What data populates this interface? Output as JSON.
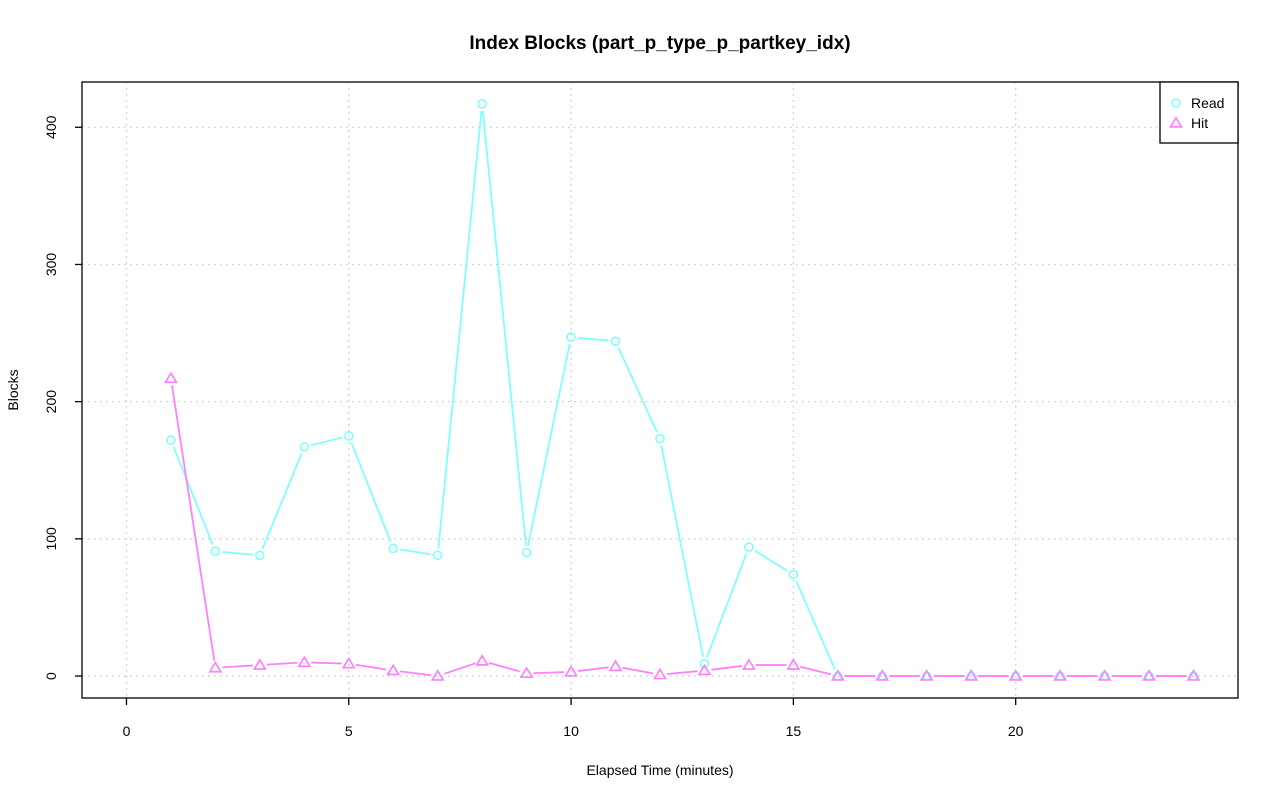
{
  "chart_data": {
    "type": "line",
    "title": "Index Blocks (part_p_type_p_partkey_idx)",
    "xlabel": "Elapsed Time (minutes)",
    "ylabel": "Blocks",
    "xlim": [
      -1,
      25
    ],
    "ylim": [
      -16,
      433
    ],
    "xticks": [
      0,
      5,
      10,
      15,
      20
    ],
    "yticks": [
      0,
      100,
      200,
      300,
      400
    ],
    "grid": true,
    "legend_position": "top-right",
    "x": [
      1,
      2,
      3,
      4,
      5,
      6,
      7,
      8,
      9,
      10,
      11,
      12,
      13,
      14,
      15,
      16,
      17,
      18,
      19,
      20,
      21,
      22,
      23,
      24
    ],
    "series": [
      {
        "name": "Read",
        "color": "#80ffff",
        "marker": "circle",
        "values": [
          172,
          91,
          88,
          167,
          175,
          93,
          88,
          417,
          90,
          247,
          244,
          173,
          9,
          94,
          74,
          0,
          0,
          0,
          0,
          0,
          0,
          0,
          0,
          0
        ]
      },
      {
        "name": "Hit",
        "color": "#ff80ff",
        "marker": "triangle",
        "values": [
          217,
          6,
          8,
          10,
          9,
          4,
          0,
          11,
          2,
          3,
          7,
          1,
          4,
          8,
          8,
          0,
          0,
          0,
          0,
          0,
          0,
          0,
          0,
          0
        ]
      }
    ]
  }
}
